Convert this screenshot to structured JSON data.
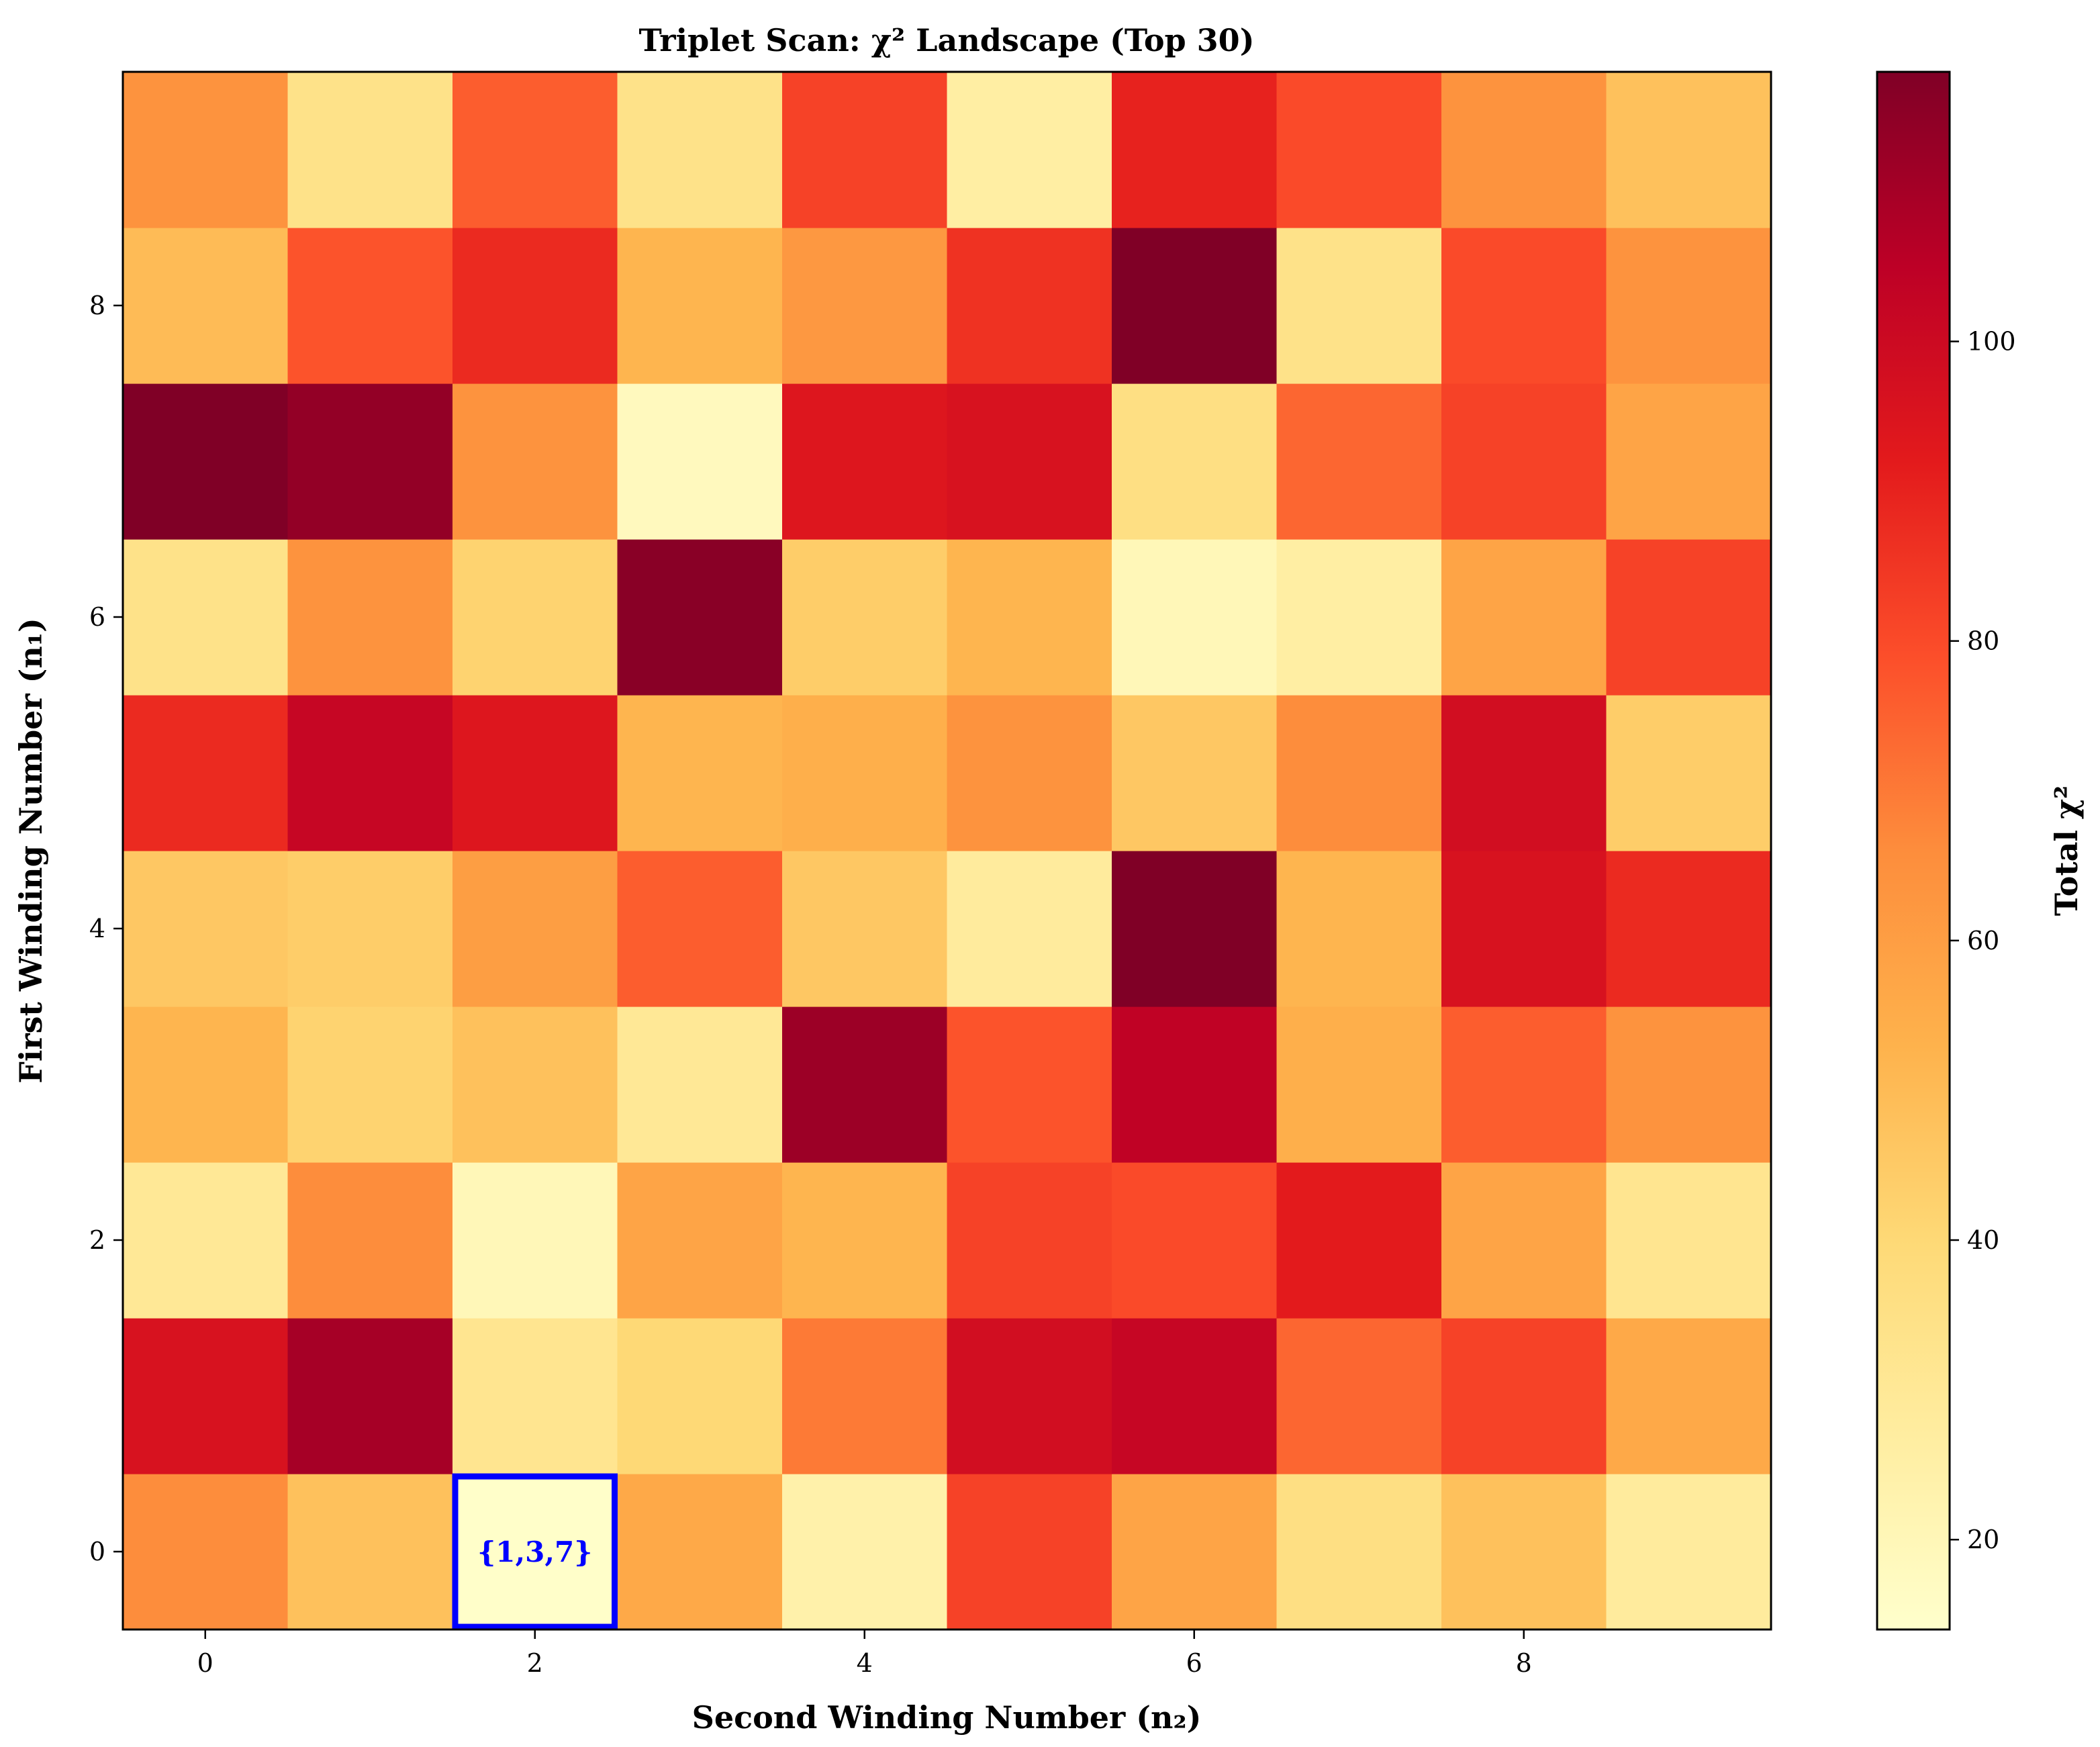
{
  "chart_data": {
    "type": "heatmap",
    "title": "Triplet Scan: χ² Landscape (Top 30)",
    "xlabel": "Second Winding Number (n₂)",
    "ylabel": "First Winding Number (n₁)",
    "colorbar_label": "Total χ²",
    "colormap": "YlOrRd",
    "x_range": [
      -0.5,
      9.5
    ],
    "y_range": [
      -0.5,
      9.5
    ],
    "x_ticks": [
      0,
      2,
      4,
      6,
      8
    ],
    "y_ticks": [
      0,
      2,
      4,
      6,
      8
    ],
    "colorbar_range": [
      14,
      118
    ],
    "colorbar_ticks": [
      20,
      40,
      60,
      80,
      100
    ],
    "grid": false,
    "rows_from_bottom_n1_0_to_9": [
      [
        66,
        48,
        15,
        56,
        24,
        82,
        58,
        36,
        48,
        28
      ],
      [
        96,
        110,
        32,
        40,
        70,
        98,
        102,
        74,
        82,
        56
      ],
      [
        30,
        66,
        20,
        58,
        52,
        82,
        80,
        92,
        58,
        32
      ],
      [
        52,
        42,
        48,
        30,
        112,
        78,
        104,
        54,
        76,
        64
      ],
      [
        46,
        44,
        60,
        76,
        46,
        28,
        118,
        52,
        96,
        88
      ],
      [
        88,
        102,
        94,
        52,
        54,
        64,
        46,
        66,
        98,
        44
      ],
      [
        34,
        64,
        42,
        116,
        44,
        52,
        20,
        26,
        58,
        82
      ],
      [
        118,
        114,
        64,
        18,
        94,
        96,
        36,
        74,
        82,
        58
      ],
      [
        50,
        78,
        88,
        52,
        62,
        86,
        118,
        34,
        80,
        64
      ],
      [
        64,
        34,
        76,
        34,
        82,
        26,
        90,
        80,
        64,
        48
      ]
    ],
    "annotations": [
      {
        "n2": 2,
        "n1": 0,
        "text": "{1,3,7}",
        "box_color": "#0000ff"
      }
    ]
  }
}
